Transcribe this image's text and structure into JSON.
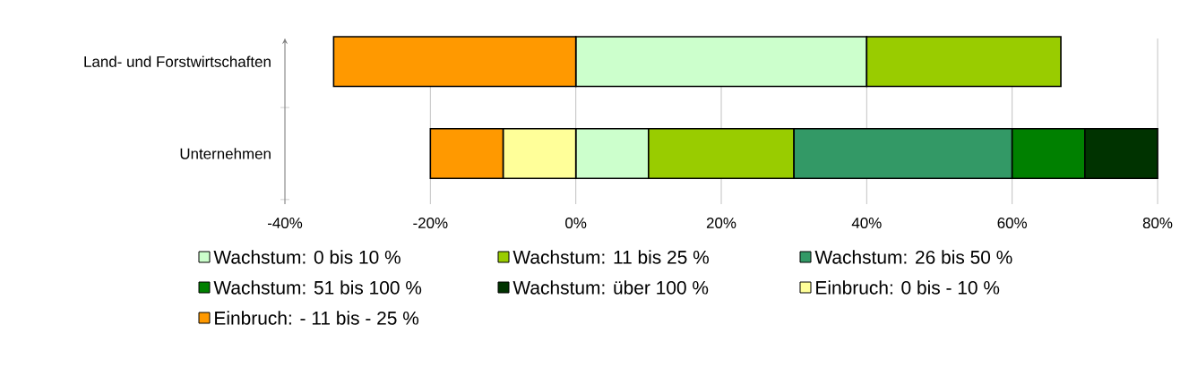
{
  "chart_data": {
    "type": "bar",
    "orientation": "horizontal",
    "stacked": true,
    "categories": [
      "Land- und Forstwirtschaften",
      "Unternehmen"
    ],
    "series": [
      {
        "name": "Wachstum: 0 bis 10 %",
        "color": "#ccffcc",
        "values": [
          40,
          10
        ]
      },
      {
        "name": "Wachstum: 11 bis 25 %",
        "color": "#99cc00",
        "values": [
          26.7,
          20
        ]
      },
      {
        "name": "Wachstum: 26 bis 50 %",
        "color": "#339966",
        "values": [
          null,
          30
        ]
      },
      {
        "name": "Wachstum: 51 bis 100 %",
        "color": "#008000",
        "values": [
          null,
          10
        ]
      },
      {
        "name": "Wachstum: über 100 %",
        "color": "#003300",
        "values": [
          null,
          10
        ]
      },
      {
        "name": "Einbruch: 0 bis - 10 %",
        "color": "#ffff99",
        "values": [
          null,
          -10
        ]
      },
      {
        "name": "Einbruch: - 11 bis - 25 %",
        "color": "#ff9900",
        "values": [
          -33.3,
          -10
        ]
      }
    ],
    "xlim": [
      -40,
      80
    ],
    "xticks": [
      {
        "value": -40,
        "label": "-40%"
      },
      {
        "value": -20,
        "label": "-20%"
      },
      {
        "value": 0,
        "label": "0%"
      },
      {
        "value": 20,
        "label": "20%"
      },
      {
        "value": 40,
        "label": "40%"
      },
      {
        "value": 60,
        "label": "60%"
      },
      {
        "value": 80,
        "label": "80%"
      }
    ],
    "grid": "x",
    "legend": "bottom"
  }
}
